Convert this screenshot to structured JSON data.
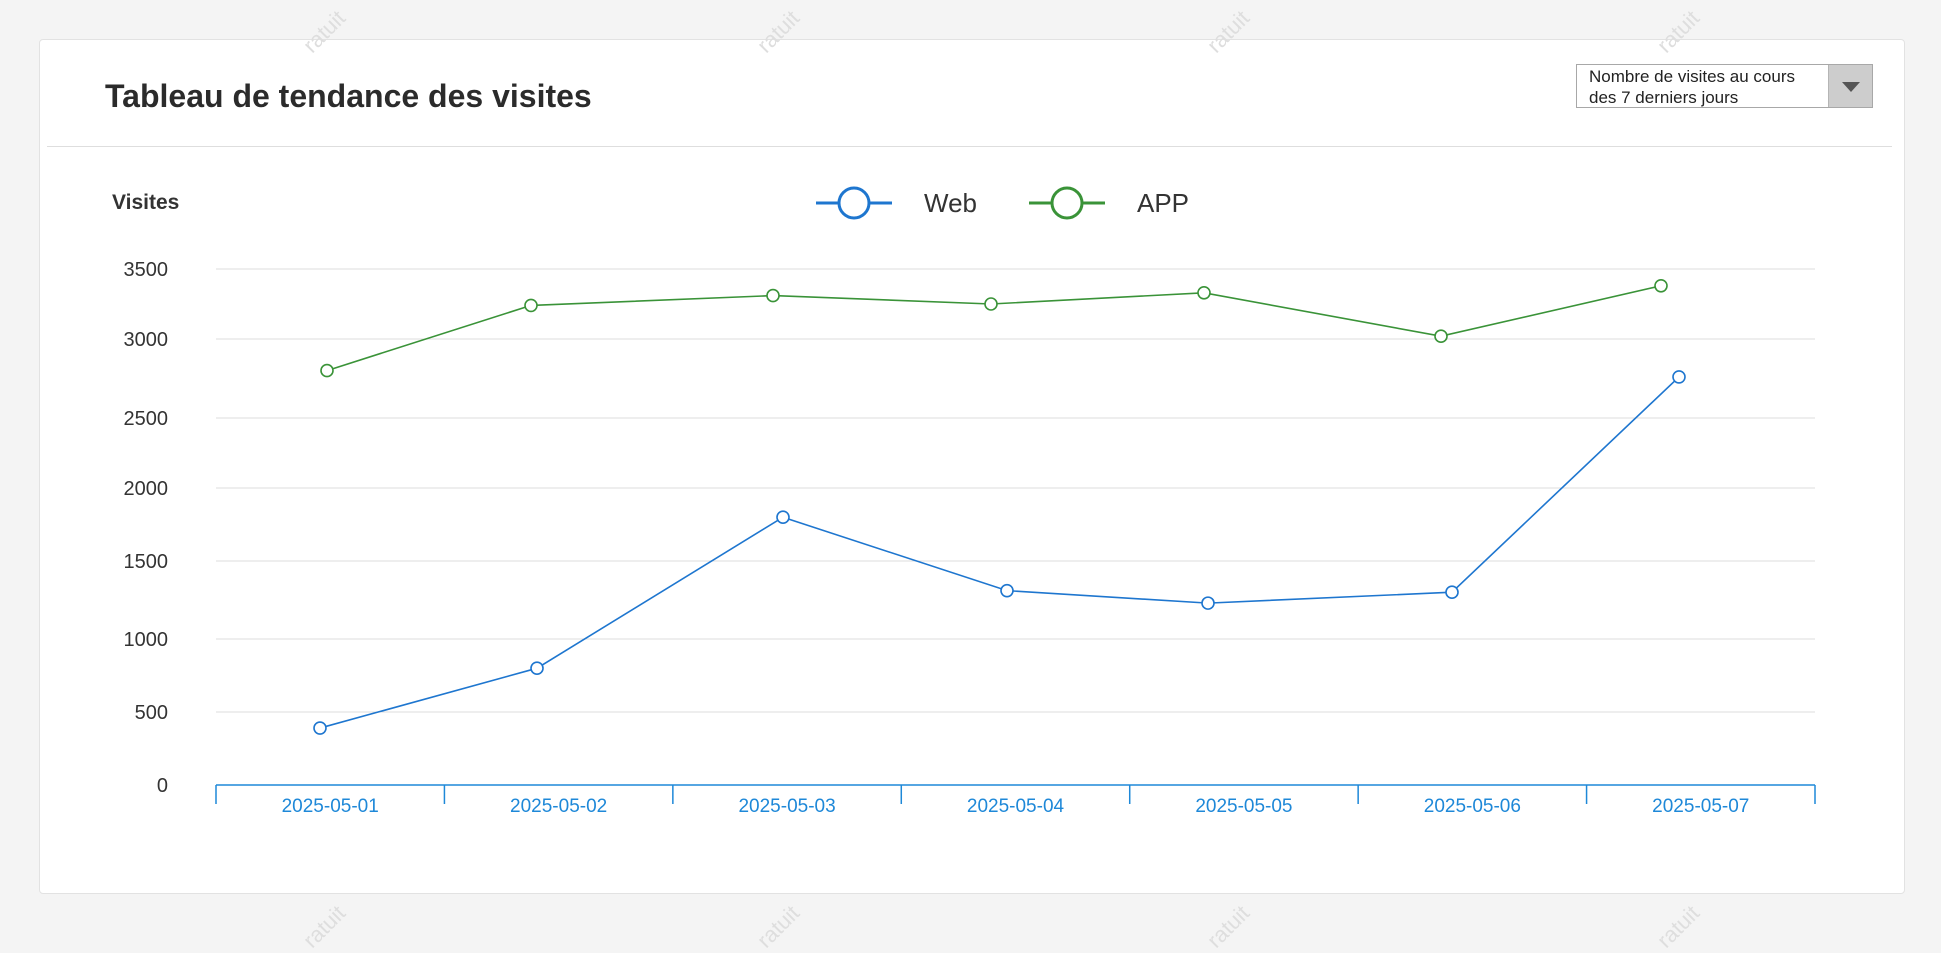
{
  "header": {
    "title": "Tableau de tendance des visites"
  },
  "range_select": {
    "value": "Nombre de visites au cours\n des 7 derniers jours",
    "icon": "triangle-down-icon"
  },
  "colors": {
    "web": "#1e76cf",
    "app": "#3a9338",
    "axis": "#1e88d8",
    "grid": "#dcdcdc",
    "watermark": "#dedede"
  },
  "watermark": {
    "text": "ratuit"
  },
  "chart_data": {
    "type": "line",
    "ylabel": "Visites",
    "categories": [
      "2025-05-01",
      "2025-05-02",
      "2025-05-03",
      "2025-05-04",
      "2025-05-05",
      "2025-05-06",
      "2025-05-07"
    ],
    "y_ticks": [
      "0",
      "500",
      "1000",
      "1500",
      "2000",
      "2500",
      "3000",
      "3500"
    ],
    "ylim": [
      0,
      3500
    ],
    "grid": true,
    "legend_position": "top-center",
    "series": [
      {
        "name": "Web",
        "values": [
          390,
          800,
          1800,
          1310,
          1230,
          1300,
          2760
        ]
      },
      {
        "name": "APP",
        "values": [
          2800,
          3240,
          3310,
          3250,
          3330,
          3020,
          3380
        ]
      }
    ]
  }
}
